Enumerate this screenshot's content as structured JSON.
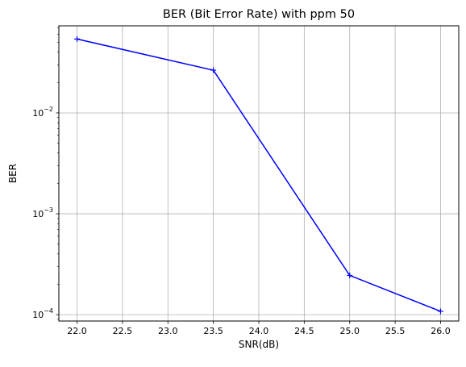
{
  "chart_data": {
    "type": "line",
    "title": "BER (Bit Error Rate) with ppm 50",
    "xlabel": "SNR(dB)",
    "ylabel": "BER",
    "x": [
      22.0,
      23.5,
      25.0,
      26.0
    ],
    "series": [
      {
        "values": [
          0.054,
          0.0265,
          0.000245,
          0.000108
        ],
        "color": "#0000ff",
        "marker": "+"
      }
    ],
    "xlim": [
      21.8,
      26.2
    ],
    "ylim": [
      8.65e-05,
      0.073
    ],
    "yscale": "log",
    "grid": true,
    "x_ticks": [
      "22.0",
      "22.5",
      "23.0",
      "23.5",
      "24.0",
      "24.5",
      "25.0",
      "25.5",
      "26.0"
    ],
    "y_ticks": [
      {
        "base": "10",
        "exp": "−2"
      },
      {
        "base": "10",
        "exp": "−3"
      },
      {
        "base": "10",
        "exp": "−4"
      }
    ]
  }
}
